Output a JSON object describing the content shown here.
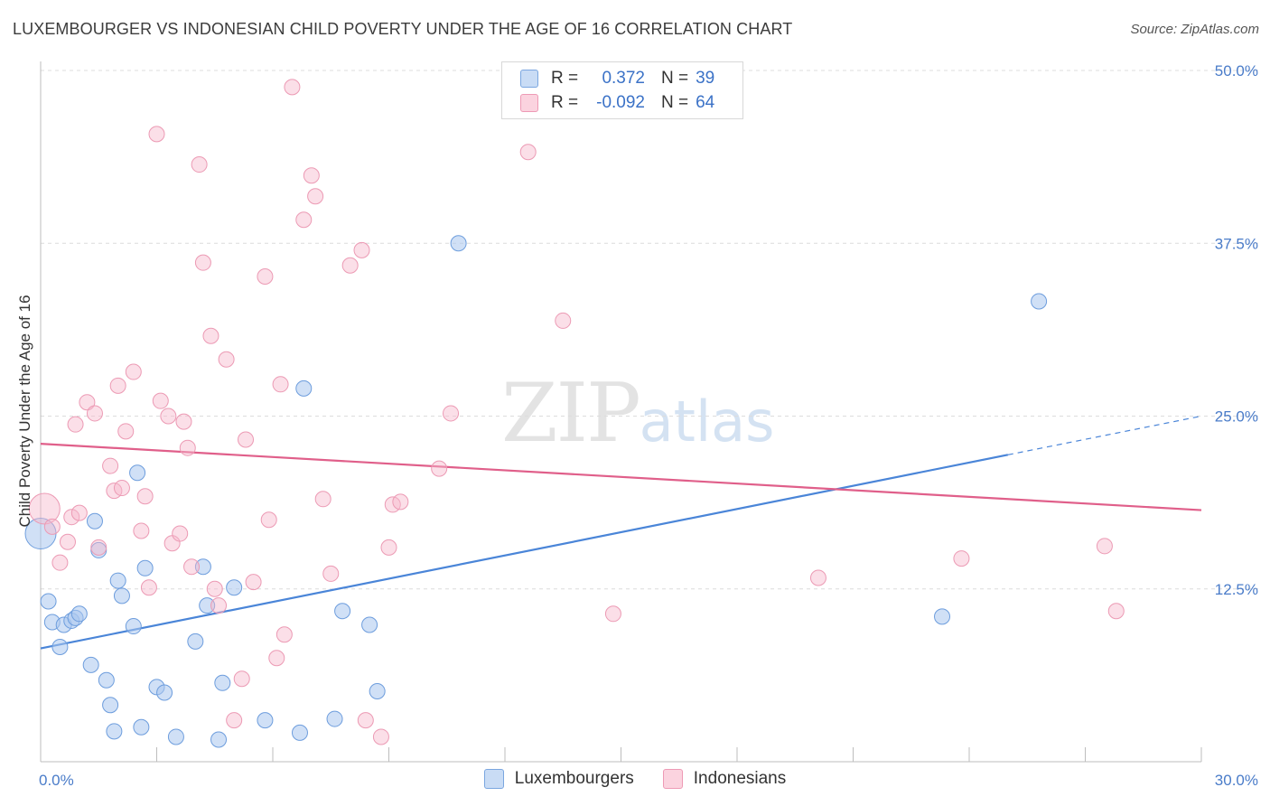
{
  "header": {
    "title": "LUXEMBOURGER VS INDONESIAN CHILD POVERTY UNDER THE AGE OF 16 CORRELATION CHART",
    "source": "Source: ZipAtlas.com"
  },
  "watermark": {
    "zip": "ZIP",
    "atlas": "atlas"
  },
  "legend": {
    "rows": [
      {
        "r_label": "R =",
        "r_value": "0.372",
        "n_label": "N =",
        "n_value": "39",
        "color": "#a9c6ee"
      },
      {
        "r_label": "R =",
        "r_value": "-0.092",
        "n_label": "N =",
        "n_value": "64",
        "color": "#f6b9cc"
      }
    ]
  },
  "bottom_legend": [
    {
      "label": "Luxembourgers",
      "color": "#a9c6ee"
    },
    {
      "label": "Indonesians",
      "color": "#f6b9cc"
    }
  ],
  "chart_data": {
    "type": "scatter",
    "ylabel": "Child Poverty Under the Age of 16",
    "xlim": [
      0,
      30
    ],
    "ylim": [
      0,
      50
    ],
    "x_tick_labels": [
      "0.0%",
      "30.0%"
    ],
    "y_ticks": [
      12.5,
      25.0,
      37.5,
      50.0
    ],
    "y_tick_labels": [
      "12.5%",
      "25.0%",
      "37.5%",
      "50.0%"
    ],
    "grid": true,
    "series": [
      {
        "name": "Luxembourgers",
        "color": "#4a85d8",
        "fill": "#a9c6ee",
        "trend": {
          "x0": 0,
          "y0": 8.2,
          "x1": 25,
          "y1": 22.2,
          "dashed_to_x": 30,
          "dashed_to_y": 25.0
        },
        "points": [
          [
            0.0,
            16.5
          ],
          [
            0.2,
            11.6
          ],
          [
            0.3,
            10.1
          ],
          [
            0.5,
            8.3
          ],
          [
            0.6,
            9.9
          ],
          [
            0.8,
            10.2
          ],
          [
            0.9,
            10.4
          ],
          [
            1.0,
            10.7
          ],
          [
            1.3,
            7.0
          ],
          [
            1.4,
            17.4
          ],
          [
            1.5,
            15.3
          ],
          [
            1.7,
            5.9
          ],
          [
            1.8,
            4.1
          ],
          [
            1.9,
            2.2
          ],
          [
            2.0,
            13.1
          ],
          [
            2.1,
            12.0
          ],
          [
            2.4,
            9.8
          ],
          [
            2.5,
            20.9
          ],
          [
            2.6,
            2.5
          ],
          [
            2.7,
            14.0
          ],
          [
            3.0,
            5.4
          ],
          [
            3.2,
            5.0
          ],
          [
            3.5,
            1.8
          ],
          [
            4.0,
            8.7
          ],
          [
            4.2,
            14.1
          ],
          [
            4.3,
            11.3
          ],
          [
            4.6,
            1.6
          ],
          [
            4.7,
            5.7
          ],
          [
            5.0,
            12.6
          ],
          [
            5.8,
            3.0
          ],
          [
            6.7,
            2.1
          ],
          [
            6.8,
            27.0
          ],
          [
            7.6,
            3.1
          ],
          [
            7.8,
            10.9
          ],
          [
            8.5,
            9.9
          ],
          [
            8.7,
            5.1
          ],
          [
            10.8,
            37.5
          ],
          [
            23.3,
            10.5
          ],
          [
            25.8,
            33.3
          ]
        ]
      },
      {
        "name": "Indonesians",
        "color": "#e05f8a",
        "fill": "#f6b9cc",
        "trend": {
          "x0": 0,
          "y0": 23.0,
          "x1": 30,
          "y1": 18.2
        },
        "points": [
          [
            0.1,
            18.3
          ],
          [
            0.3,
            17.0
          ],
          [
            0.5,
            14.4
          ],
          [
            0.7,
            15.9
          ],
          [
            0.8,
            17.7
          ],
          [
            0.9,
            24.4
          ],
          [
            1.0,
            18.0
          ],
          [
            1.2,
            26.0
          ],
          [
            1.4,
            25.2
          ],
          [
            1.5,
            15.5
          ],
          [
            1.8,
            21.4
          ],
          [
            1.9,
            19.6
          ],
          [
            2.0,
            27.2
          ],
          [
            2.1,
            19.8
          ],
          [
            2.2,
            23.9
          ],
          [
            2.4,
            28.2
          ],
          [
            2.6,
            16.7
          ],
          [
            2.7,
            19.2
          ],
          [
            2.8,
            12.6
          ],
          [
            3.0,
            45.4
          ],
          [
            3.1,
            26.1
          ],
          [
            3.3,
            25.0
          ],
          [
            3.4,
            15.8
          ],
          [
            3.6,
            16.5
          ],
          [
            3.7,
            24.6
          ],
          [
            3.8,
            22.7
          ],
          [
            3.9,
            14.1
          ],
          [
            4.1,
            43.2
          ],
          [
            4.2,
            36.1
          ],
          [
            4.4,
            30.8
          ],
          [
            4.5,
            12.5
          ],
          [
            4.6,
            11.3
          ],
          [
            4.8,
            29.1
          ],
          [
            5.2,
            6.0
          ],
          [
            5.3,
            23.3
          ],
          [
            5.5,
            13.0
          ],
          [
            5.8,
            35.1
          ],
          [
            5.9,
            17.5
          ],
          [
            6.1,
            7.5
          ],
          [
            6.2,
            27.3
          ],
          [
            6.3,
            9.2
          ],
          [
            6.5,
            48.8
          ],
          [
            6.8,
            39.2
          ],
          [
            7.0,
            42.4
          ],
          [
            7.1,
            40.9
          ],
          [
            7.3,
            19.0
          ],
          [
            7.5,
            13.6
          ],
          [
            8.0,
            35.9
          ],
          [
            8.3,
            37.0
          ],
          [
            8.4,
            3.0
          ],
          [
            8.8,
            1.8
          ],
          [
            9.0,
            15.5
          ],
          [
            9.1,
            18.6
          ],
          [
            9.3,
            18.8
          ],
          [
            10.3,
            21.2
          ],
          [
            10.6,
            25.2
          ],
          [
            12.6,
            44.1
          ],
          [
            13.5,
            31.9
          ],
          [
            14.8,
            10.7
          ],
          [
            20.1,
            13.3
          ],
          [
            23.8,
            14.7
          ],
          [
            27.5,
            15.6
          ],
          [
            27.8,
            10.9
          ],
          [
            5.0,
            3.0
          ]
        ]
      }
    ]
  }
}
